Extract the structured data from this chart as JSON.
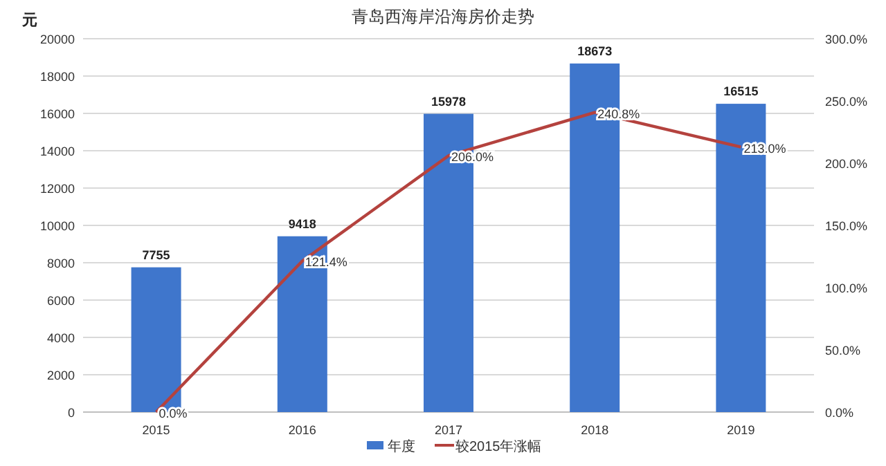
{
  "chart_data": {
    "type": "bar",
    "title": "青岛西海岸沿海房价走势",
    "ylabel": "元",
    "categories": [
      "2015",
      "2016",
      "2017",
      "2018",
      "2019"
    ],
    "series": [
      {
        "name": "年度",
        "color": "#3f76cc",
        "values": [
          7755,
          9418,
          15978,
          18673,
          16515
        ],
        "value_labels": [
          "7755",
          "9418",
          "15978",
          "18673",
          "16515"
        ]
      },
      {
        "name": "较2015年涨幅",
        "type": "line",
        "axis": "y2",
        "color": "#b4423e",
        "values": [
          0,
          121.4,
          206,
          240.8,
          213
        ],
        "value_labels": [
          "0.0%",
          "121.4%",
          "206.0%",
          "240.8%",
          "213.0%"
        ]
      }
    ],
    "ylim": [
      0,
      20000
    ],
    "yticks": [
      0,
      2000,
      4000,
      6000,
      8000,
      10000,
      12000,
      14000,
      16000,
      18000,
      20000
    ],
    "y2lim": [
      0,
      300
    ],
    "y2ticks": [
      {
        "value": 0,
        "label": "0.0%"
      },
      {
        "value": 50,
        "label": "50.0%"
      },
      {
        "value": 100,
        "label": "100.0%"
      },
      {
        "value": 150,
        "label": "150.0%"
      },
      {
        "value": 200,
        "label": "200.0%"
      },
      {
        "value": 250,
        "label": "250.0%"
      },
      {
        "value": 300,
        "label": "300.0%"
      }
    ],
    "grid": "y",
    "legend": "bottom",
    "marker": "none"
  }
}
